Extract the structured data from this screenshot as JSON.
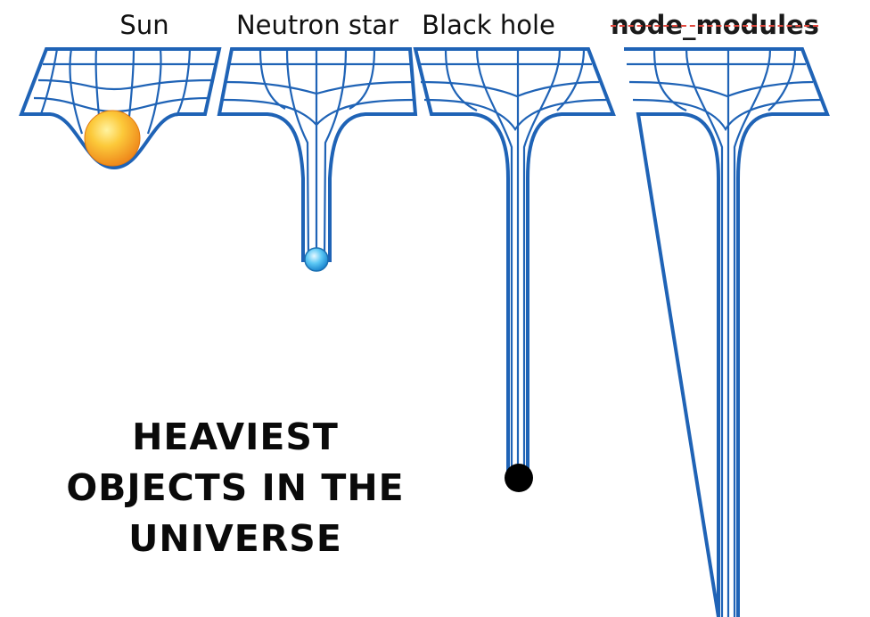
{
  "labels": {
    "sun": "Sun",
    "neutron_star": "Neutron star",
    "black_hole": "Black hole",
    "node_modules": "node_modules"
  },
  "caption": {
    "line1": "HEAVIEST",
    "line2": "OBJECTS IN THE",
    "line3": "UNIVERSE"
  },
  "colors": {
    "grid": "#1f63b6",
    "sun": "#f5a623",
    "neutron_star": "#2fa8e8",
    "black_hole": "#000000",
    "strike": "#e0483e"
  }
}
